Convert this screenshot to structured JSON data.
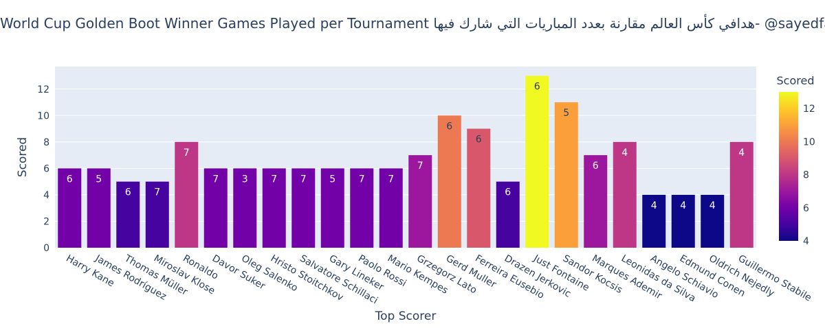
{
  "chart_data": {
    "type": "bar",
    "title": "World Cup Golden Boot Winner Games Played per Tournament هدافي كأس العالم مقارنة بعدد المباريات التي شارك فيها- @sayedfarouk",
    "xlabel": "Top Scorer",
    "ylabel": "Scored",
    "ylim": [
      0,
      13.7
    ],
    "yticks": [
      0,
      2,
      4,
      6,
      8,
      10,
      12
    ],
    "grid": true,
    "categories": [
      "Harry Kane",
      "James Rodríguez",
      "Thomas Müller",
      "Miroslav Klose",
      "Ronaldo",
      "Davor Suker",
      "Oleg Salenko",
      "Hristo Stoitchkov",
      "Salvatore Schillaci",
      "Gary Lineker",
      "Paolo Rossi",
      "Mario Kempes",
      "Grzegorz Lato",
      "Gerd Muller",
      "Ferreira Eusebio",
      "Drazen Jerkovic",
      "Just Fontaine",
      "Sandor Kocsis",
      "Marques Ademir",
      "Leonidas da Silva",
      "Angelo Schiavio",
      "Edmund Conen",
      "Oldrich Nejedly",
      "Guillermo Stabile"
    ],
    "series": [
      {
        "values": [
          6,
          6,
          5,
          5,
          8,
          6,
          6,
          6,
          6,
          6,
          6,
          6,
          7,
          10,
          9,
          5,
          13,
          11,
          7,
          8,
          4,
          4,
          4,
          8
        ]
      }
    ],
    "bar_labels": [
      6,
      5,
      6,
      7,
      7,
      7,
      3,
      7,
      7,
      5,
      7,
      7,
      7,
      6,
      6,
      6,
      6,
      5,
      6,
      4,
      4,
      4,
      4,
      4
    ],
    "colorbar": {
      "title": "Scored",
      "range": [
        4,
        13
      ],
      "ticks": [
        4,
        6,
        8,
        10,
        12
      ],
      "colorscale": [
        "#0d0887",
        "#46039f",
        "#7201a8",
        "#9c179e",
        "#bd3786",
        "#d8576b",
        "#ed7953",
        "#fb9f3a",
        "#fdca26",
        "#f0f921"
      ]
    }
  }
}
